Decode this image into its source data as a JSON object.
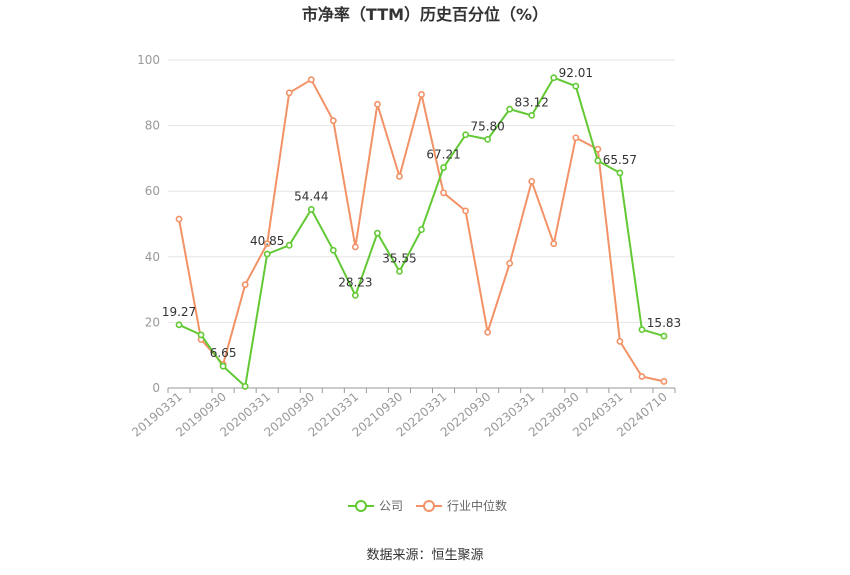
{
  "chart_data": {
    "type": "line",
    "title": "市净率（TTM）历史百分位（%）",
    "ylim": [
      0,
      100
    ],
    "yticks": [
      0,
      20,
      40,
      60,
      80,
      100
    ],
    "grid": true,
    "legend_position": "bottom-center",
    "x_tick_labels": [
      "20190331",
      "20190930",
      "20200331",
      "20200930",
      "20210331",
      "20210930",
      "20220331",
      "20220930",
      "20230331",
      "20230930",
      "20240331",
      "20240710"
    ],
    "x_tick_positions": [
      0,
      2,
      4,
      6,
      8,
      10,
      12,
      14,
      16,
      18,
      20,
      22
    ],
    "series": [
      {
        "name": "公司",
        "color": "#62c934",
        "values": [
          19.27,
          16.2,
          6.65,
          0.5,
          40.85,
          43.5,
          54.44,
          42.0,
          28.23,
          47.2,
          35.55,
          48.3,
          67.21,
          77.2,
          75.8,
          85.0,
          83.12,
          94.6,
          92.01,
          69.3,
          65.57,
          17.8,
          15.83
        ],
        "labeled_points": [
          0,
          2,
          4,
          6,
          8,
          10,
          12,
          14,
          16,
          18,
          20,
          22
        ]
      },
      {
        "name": "行业中位数",
        "color": "#f29266",
        "values": [
          51.5,
          14.8,
          7.2,
          31.5,
          44.0,
          90.0,
          94.0,
          81.5,
          43.0,
          86.5,
          64.5,
          89.5,
          59.5,
          54.0,
          17.0,
          38.0,
          63.0,
          44.0,
          76.3,
          72.8,
          14.2,
          3.5,
          2.0
        ]
      }
    ]
  },
  "source": "数据来源：恒生聚源"
}
